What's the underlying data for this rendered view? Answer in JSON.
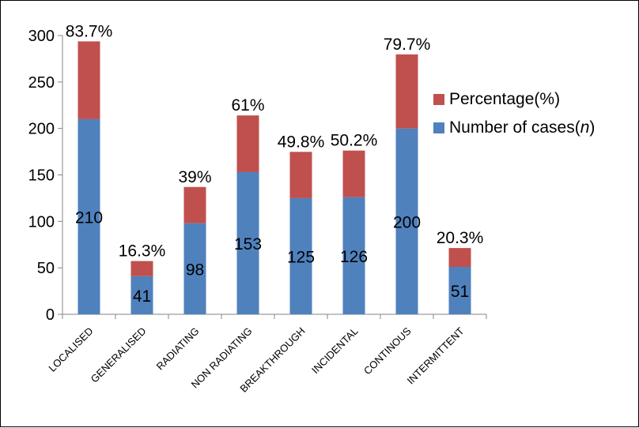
{
  "chart_data": {
    "type": "bar",
    "stacked": true,
    "categories": [
      "LOCALISED",
      "GENERALISED",
      "RADIATING",
      "NON RADIATING",
      "BREAKTHROUGH",
      "INCIDENTAL",
      "CONTINOUS",
      "INTERMITTENT"
    ],
    "series": [
      {
        "name": "Number of cases(n)",
        "color": "#4f81bd",
        "values": [
          210,
          41,
          98,
          153,
          125,
          126,
          200,
          51
        ],
        "labels": [
          "210",
          "41",
          "98",
          "153",
          "125",
          "126",
          "200",
          "51"
        ]
      },
      {
        "name": "Percentage(%)",
        "color": "#c0504d",
        "values": [
          83.7,
          16.3,
          39,
          61,
          49.8,
          50.2,
          79.7,
          20.3
        ],
        "labels": [
          "83.7%",
          "16.3%",
          "39%",
          "61%",
          "49.8%",
          "50.2%",
          "79.7%",
          "20.3%"
        ]
      }
    ],
    "legend": {
      "placement": "right",
      "entries": [
        {
          "prefix": "Percentage(%)",
          "italic": "",
          "suffix": ""
        },
        {
          "prefix": "Number of cases(",
          "italic": "n",
          "suffix": ")"
        }
      ]
    },
    "yticks": [
      "0",
      "50",
      "100",
      "150",
      "200",
      "250",
      "300"
    ],
    "ylim": [
      0,
      300
    ],
    "grid": false,
    "title": "",
    "xlabel": "",
    "ylabel": ""
  }
}
